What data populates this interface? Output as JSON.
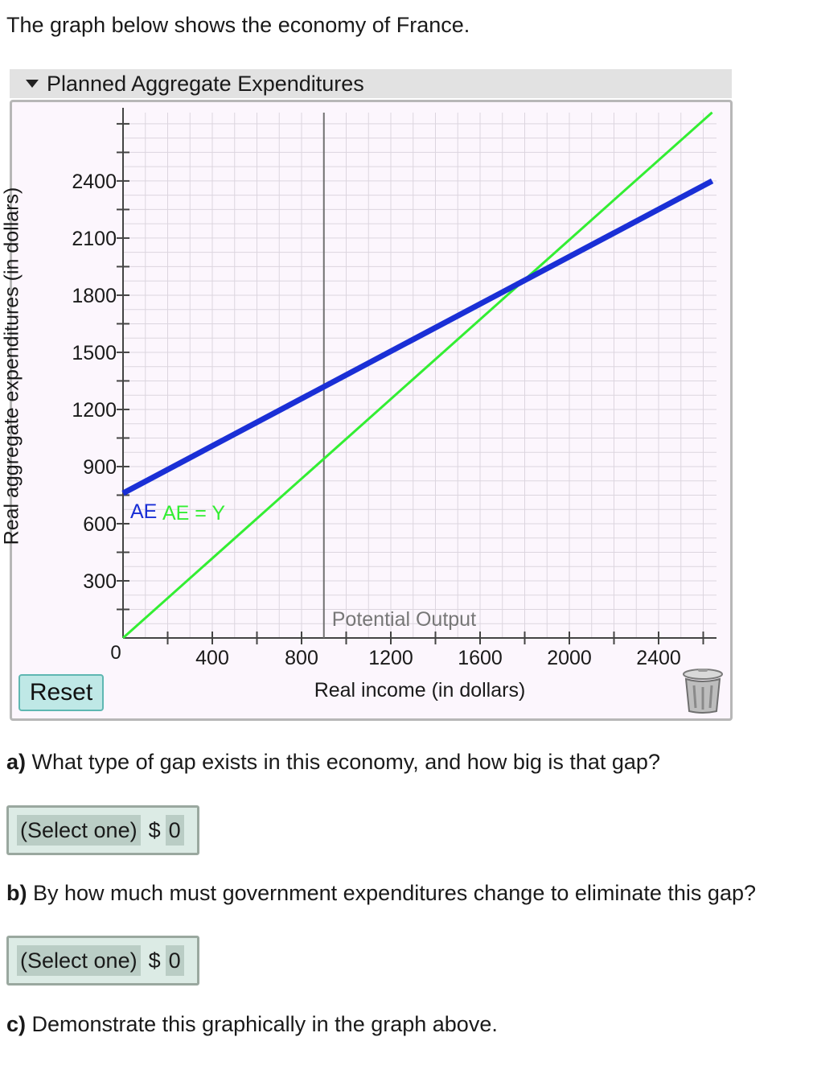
{
  "intro": "The graph below shows the economy of France.",
  "panel": {
    "title": "Planned Aggregate Expenditures"
  },
  "reset_label": "Reset",
  "colors": {
    "ae": "#1a2fd6",
    "ae_equals_y": "#33ee33",
    "potential": "#707070",
    "panel_bg": "#fcf6fd"
  },
  "chart_data": {
    "type": "line",
    "xlabel": "Real income (in dollars)",
    "ylabel": "Real aggregate expenditures (in dollars)",
    "xlim": [
      0,
      2640
    ],
    "ylim": [
      0,
      2760
    ],
    "x_ticks": [
      400,
      800,
      1200,
      1600,
      2000,
      2400
    ],
    "y_ticks": [
      300,
      600,
      900,
      1200,
      1500,
      1800,
      2100,
      2400
    ],
    "origin_label": "0",
    "grid": true,
    "series": [
      {
        "name": "AE",
        "color": "#1a2fd6",
        "points": [
          [
            0,
            760
          ],
          [
            2640,
            2400
          ]
        ]
      },
      {
        "name": "AE = Y",
        "color": "#33ee33",
        "points": [
          [
            0,
            0
          ],
          [
            2640,
            2760
          ]
        ]
      }
    ],
    "vertical_line": {
      "label": "Potential Output",
      "x": 900
    }
  },
  "questions": {
    "a": {
      "letter": "a)",
      "text": " What type of gap exists in this economy, and how big is that gap?",
      "select": "(Select one)",
      "currency": "$",
      "value": "0"
    },
    "b": {
      "letter": "b)",
      "text": " By how much must government expenditures change to eliminate this gap?",
      "select": "(Select one)",
      "currency": "$",
      "value": "0"
    },
    "c": {
      "letter": "c)",
      "text": " Demonstrate this graphically in the graph above."
    }
  }
}
